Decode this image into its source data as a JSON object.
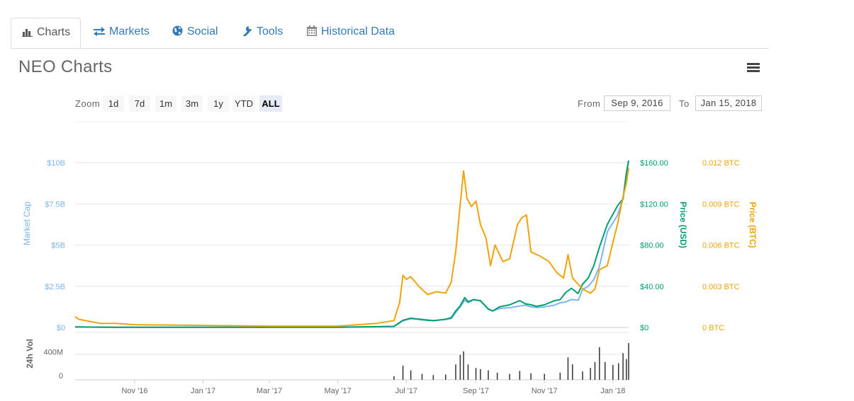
{
  "tabs": [
    {
      "label": "Charts",
      "icon": "bar-chart-icon",
      "active": true
    },
    {
      "label": "Markets",
      "icon": "exchange-icon",
      "active": false
    },
    {
      "label": "Social",
      "icon": "globe-icon",
      "active": false
    },
    {
      "label": "Tools",
      "icon": "wrench-icon",
      "active": false
    },
    {
      "label": "Historical Data",
      "icon": "calendar-icon",
      "active": false
    }
  ],
  "page_title": "NEO Charts",
  "zoom": {
    "label": "Zoom",
    "buttons": [
      "1d",
      "7d",
      "1m",
      "3m",
      "1y",
      "YTD",
      "ALL"
    ],
    "selected": "ALL"
  },
  "range": {
    "from_label": "From",
    "from_value": "Sep 9, 2016",
    "to_label": "To",
    "to_value": "Jan 15, 2018"
  },
  "colors": {
    "market_cap": "#7cb5ec",
    "price_usd": "#009e73",
    "price_btc": "#f0a30a",
    "volume": "#333333",
    "link": "#337ab7"
  },
  "chart_data": {
    "type": "line",
    "x_ticks": [
      "Nov '16",
      "Jan '17",
      "Mar '17",
      "May '17",
      "Jul '17",
      "Sep '17",
      "Nov '17",
      "Jan '18"
    ],
    "x_range": [
      "2016-09-09",
      "2018-01-15"
    ],
    "grid": true,
    "axes": {
      "market_cap": {
        "label": "Market Cap",
        "ticks": [
          "$0",
          "$2.5B",
          "$5B",
          "$7.5B",
          "$10B"
        ],
        "range": [
          0,
          10000000000
        ]
      },
      "price_usd": {
        "label": "Price (USD)",
        "ticks": [
          "$0",
          "$40.00",
          "$80.00",
          "$120.00",
          "$160.00"
        ],
        "range": [
          0,
          160
        ]
      },
      "price_btc": {
        "label": "Price (BTC)",
        "ticks": [
          "0 BTC",
          "0.003 BTC",
          "0.006 BTC",
          "0.009 BTC",
          "0.012 BTC"
        ],
        "range": [
          0,
          0.012
        ]
      },
      "volume": {
        "label": "24h Vol",
        "ticks": [
          "0",
          "400M"
        ],
        "range": [
          0,
          800000000
        ]
      }
    },
    "series": [
      {
        "name": "Market Cap",
        "axis": "market_cap",
        "points": [
          [
            "2016-09-09",
            30000000
          ],
          [
            "2016-10-15",
            15000000
          ],
          [
            "2017-01-01",
            10000000
          ],
          [
            "2017-05-01",
            10000000
          ],
          [
            "2017-06-20",
            60000000
          ],
          [
            "2017-06-28",
            400000000
          ],
          [
            "2017-07-05",
            530000000
          ],
          [
            "2017-07-15",
            500000000
          ],
          [
            "2017-07-25",
            420000000
          ],
          [
            "2017-08-05",
            480000000
          ],
          [
            "2017-08-10",
            540000000
          ],
          [
            "2017-08-14",
            900000000
          ],
          [
            "2017-08-18",
            1250000000
          ],
          [
            "2017-08-22",
            1650000000
          ],
          [
            "2017-08-25",
            1500000000
          ],
          [
            "2017-08-30",
            1700000000
          ],
          [
            "2017-09-05",
            1600000000
          ],
          [
            "2017-09-12",
            1100000000
          ],
          [
            "2017-09-16",
            1000000000
          ],
          [
            "2017-09-22",
            1150000000
          ],
          [
            "2017-10-01",
            1200000000
          ],
          [
            "2017-10-10",
            1300000000
          ],
          [
            "2017-10-15",
            1350000000
          ],
          [
            "2017-10-20",
            1250000000
          ],
          [
            "2017-10-25",
            1200000000
          ],
          [
            "2017-11-01",
            1250000000
          ],
          [
            "2017-11-10",
            1350000000
          ],
          [
            "2017-11-15",
            1500000000
          ],
          [
            "2017-11-20",
            1550000000
          ],
          [
            "2017-11-25",
            1700000000
          ],
          [
            "2017-12-01",
            1650000000
          ],
          [
            "2017-12-05",
            2300000000
          ],
          [
            "2017-12-10",
            2500000000
          ],
          [
            "2017-12-15",
            2900000000
          ],
          [
            "2017-12-20",
            3700000000
          ],
          [
            "2017-12-27",
            5800000000
          ],
          [
            "2018-01-05",
            6800000000
          ],
          [
            "2018-01-10",
            7800000000
          ],
          [
            "2018-01-13",
            9200000000
          ],
          [
            "2018-01-15",
            10100000000
          ]
        ]
      },
      {
        "name": "Price (USD)",
        "axis": "price_usd",
        "points": [
          [
            "2016-09-09",
            0.5
          ],
          [
            "2016-10-15",
            0.2
          ],
          [
            "2017-01-01",
            0.15
          ],
          [
            "2017-05-01",
            0.2
          ],
          [
            "2017-06-20",
            1.0
          ],
          [
            "2017-06-28",
            7.0
          ],
          [
            "2017-07-05",
            9.0
          ],
          [
            "2017-07-15",
            7.5
          ],
          [
            "2017-07-25",
            6.5
          ],
          [
            "2017-08-05",
            8.0
          ],
          [
            "2017-08-10",
            9.5
          ],
          [
            "2017-08-14",
            16.0
          ],
          [
            "2017-08-18",
            21.0
          ],
          [
            "2017-08-22",
            29.0
          ],
          [
            "2017-08-25",
            25.0
          ],
          [
            "2017-08-30",
            27.0
          ],
          [
            "2017-09-05",
            26.0
          ],
          [
            "2017-09-12",
            18.0
          ],
          [
            "2017-09-16",
            16.0
          ],
          [
            "2017-09-22",
            20.0
          ],
          [
            "2017-10-01",
            22.0
          ],
          [
            "2017-10-10",
            26.0
          ],
          [
            "2017-10-15",
            23.0
          ],
          [
            "2017-10-20",
            22.0
          ],
          [
            "2017-10-25",
            20.5
          ],
          [
            "2017-11-01",
            22.0
          ],
          [
            "2017-11-10",
            26.0
          ],
          [
            "2017-11-15",
            27.0
          ],
          [
            "2017-11-20",
            34.0
          ],
          [
            "2017-11-25",
            38.0
          ],
          [
            "2017-12-01",
            33.0
          ],
          [
            "2017-12-05",
            42.0
          ],
          [
            "2017-12-10",
            48.0
          ],
          [
            "2017-12-15",
            60.0
          ],
          [
            "2017-12-20",
            78.0
          ],
          [
            "2017-12-27",
            100.0
          ],
          [
            "2018-01-05",
            118.0
          ],
          [
            "2018-01-10",
            125.0
          ],
          [
            "2018-01-13",
            150.0
          ],
          [
            "2018-01-15",
            162.0
          ]
        ]
      },
      {
        "name": "Price (BTC)",
        "axis": "price_btc",
        "points": [
          [
            "2016-09-09",
            0.0008
          ],
          [
            "2016-09-12",
            0.0006
          ],
          [
            "2016-10-01",
            0.0003
          ],
          [
            "2016-10-15",
            0.0003
          ],
          [
            "2016-11-01",
            0.0002
          ],
          [
            "2017-01-01",
            0.00015
          ],
          [
            "2017-03-01",
            0.0001
          ],
          [
            "2017-05-01",
            0.0001
          ],
          [
            "2017-06-05",
            0.0003
          ],
          [
            "2017-06-20",
            0.0005
          ],
          [
            "2017-06-25",
            0.0018
          ],
          [
            "2017-06-28",
            0.0038
          ],
          [
            "2017-07-01",
            0.0035
          ],
          [
            "2017-07-05",
            0.0037
          ],
          [
            "2017-07-12",
            0.003
          ],
          [
            "2017-07-20",
            0.0024
          ],
          [
            "2017-07-28",
            0.0026
          ],
          [
            "2017-08-05",
            0.0025
          ],
          [
            "2017-08-10",
            0.0033
          ],
          [
            "2017-08-14",
            0.0055
          ],
          [
            "2017-08-18",
            0.009
          ],
          [
            "2017-08-21",
            0.0114
          ],
          [
            "2017-08-24",
            0.0094
          ],
          [
            "2017-08-28",
            0.0088
          ],
          [
            "2017-09-01",
            0.0092
          ],
          [
            "2017-09-05",
            0.0075
          ],
          [
            "2017-09-10",
            0.0065
          ],
          [
            "2017-09-14",
            0.0045
          ],
          [
            "2017-09-18",
            0.006
          ],
          [
            "2017-09-25",
            0.0048
          ],
          [
            "2017-10-01",
            0.005
          ],
          [
            "2017-10-08",
            0.0075
          ],
          [
            "2017-10-12",
            0.008
          ],
          [
            "2017-10-16",
            0.0082
          ],
          [
            "2017-10-20",
            0.0055
          ],
          [
            "2017-10-28",
            0.0052
          ],
          [
            "2017-11-05",
            0.0048
          ],
          [
            "2017-11-12",
            0.004
          ],
          [
            "2017-11-18",
            0.0036
          ],
          [
            "2017-11-22",
            0.0053
          ],
          [
            "2017-11-26",
            0.0036
          ],
          [
            "2017-12-05",
            0.0028
          ],
          [
            "2017-12-12",
            0.0025
          ],
          [
            "2017-12-16",
            0.0028
          ],
          [
            "2017-12-20",
            0.0042
          ],
          [
            "2017-12-27",
            0.0045
          ],
          [
            "2018-01-01",
            0.0062
          ],
          [
            "2018-01-05",
            0.0075
          ],
          [
            "2018-01-10",
            0.0095
          ],
          [
            "2018-01-13",
            0.0105
          ],
          [
            "2018-01-15",
            0.0116
          ]
        ]
      },
      {
        "name": "24h Vol",
        "axis": "volume",
        "type": "bar",
        "points": [
          [
            "2017-06-20",
            60000000
          ],
          [
            "2017-06-28",
            240000000
          ],
          [
            "2017-07-05",
            160000000
          ],
          [
            "2017-07-15",
            100000000
          ],
          [
            "2017-07-25",
            80000000
          ],
          [
            "2017-08-05",
            90000000
          ],
          [
            "2017-08-14",
            260000000
          ],
          [
            "2017-08-18",
            420000000
          ],
          [
            "2017-08-21",
            480000000
          ],
          [
            "2017-08-25",
            260000000
          ],
          [
            "2017-09-01",
            200000000
          ],
          [
            "2017-09-05",
            180000000
          ],
          [
            "2017-09-12",
            160000000
          ],
          [
            "2017-09-20",
            120000000
          ],
          [
            "2017-10-01",
            100000000
          ],
          [
            "2017-10-10",
            150000000
          ],
          [
            "2017-10-20",
            110000000
          ],
          [
            "2017-11-01",
            100000000
          ],
          [
            "2017-11-15",
            120000000
          ],
          [
            "2017-11-22",
            380000000
          ],
          [
            "2017-11-26",
            260000000
          ],
          [
            "2017-12-05",
            140000000
          ],
          [
            "2017-12-12",
            200000000
          ],
          [
            "2017-12-16",
            300000000
          ],
          [
            "2017-12-20",
            550000000
          ],
          [
            "2017-12-25",
            300000000
          ],
          [
            "2018-01-01",
            250000000
          ],
          [
            "2018-01-06",
            280000000
          ],
          [
            "2018-01-10",
            450000000
          ],
          [
            "2018-01-13",
            350000000
          ],
          [
            "2018-01-15",
            620000000
          ]
        ]
      }
    ]
  }
}
